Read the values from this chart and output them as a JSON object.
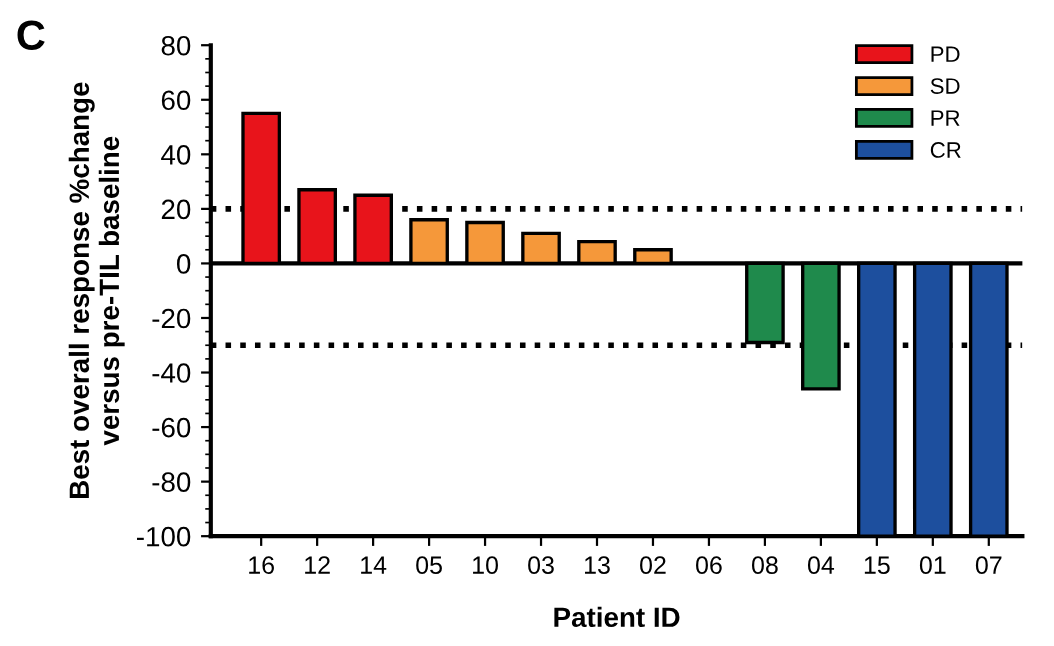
{
  "chart_data": {
    "type": "bar",
    "ylabel": "Best overall response %change\nversus pre-TIL baseline",
    "xlabel": "Patient ID",
    "annotations": [
      "C"
    ],
    "categories": [
      "16",
      "12",
      "14",
      "05",
      "10",
      "03",
      "13",
      "02",
      "06",
      "08",
      "04",
      "15",
      "01",
      "07"
    ],
    "series": [
      {
        "name": "PD",
        "color": "#e8141b",
        "values": [
          55,
          27,
          25,
          null,
          null,
          null,
          null,
          null,
          null,
          null,
          null,
          null,
          null,
          null
        ]
      },
      {
        "name": "SD",
        "color": "#f5983a",
        "values": [
          null,
          null,
          null,
          16,
          15,
          11,
          8,
          5,
          null,
          null,
          null,
          null,
          null,
          null
        ]
      },
      {
        "name": "PR",
        "color": "#1f8a4c",
        "values": [
          null,
          null,
          null,
          null,
          null,
          null,
          null,
          null,
          null,
          -29,
          -46,
          null,
          null,
          null
        ]
      },
      {
        "name": "CR",
        "color": "#1d4f9e",
        "values": [
          null,
          null,
          null,
          null,
          null,
          null,
          null,
          null,
          null,
          null,
          null,
          -100,
          -100,
          -100
        ]
      }
    ],
    "ylim": [
      -100,
      80
    ],
    "yticks": [
      -100,
      -80,
      -60,
      -40,
      -20,
      0,
      20,
      40,
      60,
      80
    ],
    "ref_lines": [
      {
        "axis": "y",
        "value": 20,
        "line_style": "dotted",
        "color": "#000000"
      },
      {
        "axis": "y",
        "value": -30,
        "line_style": "dotted",
        "color": "#000000"
      },
      {
        "axis": "y",
        "value": 0,
        "line_style": "solid",
        "color": "#000000"
      }
    ],
    "legend": "top right",
    "grid": false
  }
}
